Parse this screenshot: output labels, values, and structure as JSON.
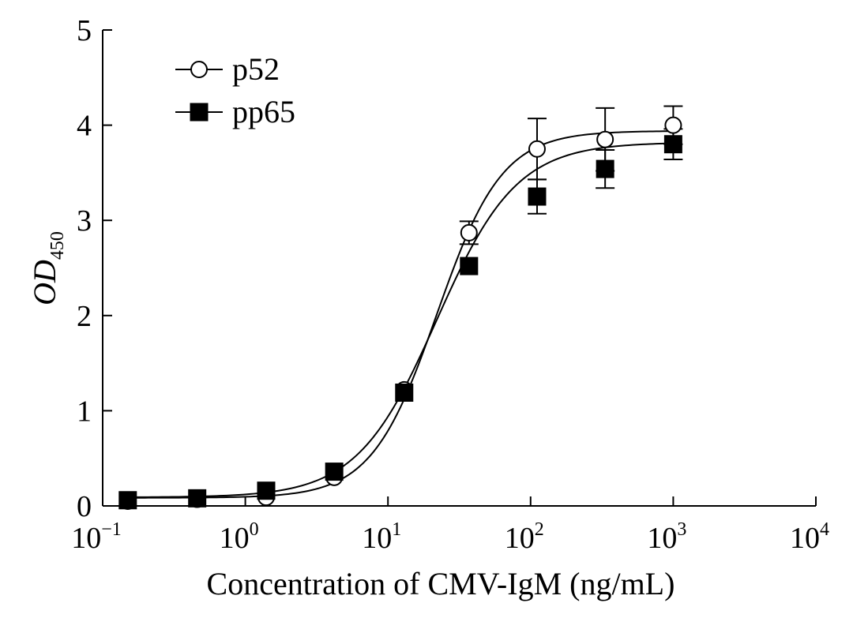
{
  "chart_data": {
    "type": "line",
    "title": "",
    "xlabel": "Concentration of CMV-IgM (ng/mL)",
    "ylabel": {
      "main": "OD",
      "sub": "450"
    },
    "x_scale": "log",
    "xlim": [
      0.1,
      10000
    ],
    "ylim": [
      0,
      5
    ],
    "x_ticks": [
      {
        "value": 0.1,
        "base": "10",
        "exp": "−1"
      },
      {
        "value": 1,
        "base": "10",
        "exp": "0"
      },
      {
        "value": 10,
        "base": "10",
        "exp": "1"
      },
      {
        "value": 100,
        "base": "10",
        "exp": "2"
      },
      {
        "value": 1000,
        "base": "10",
        "exp": "3"
      },
      {
        "value": 10000,
        "base": "10",
        "exp": "4"
      }
    ],
    "y_ticks": [
      {
        "value": 0,
        "label": "0"
      },
      {
        "value": 1,
        "label": "1"
      },
      {
        "value": 2,
        "label": "2"
      },
      {
        "value": 3,
        "label": "3"
      },
      {
        "value": 4,
        "label": "4"
      },
      {
        "value": 5,
        "label": "5"
      }
    ],
    "grid": false,
    "legend_position": "top-left",
    "series": [
      {
        "name": "p52",
        "marker": "open-circle",
        "x": [
          0.15,
          0.46,
          1.4,
          4.2,
          13,
          37,
          111,
          333,
          1000
        ],
        "y": [
          0.05,
          0.07,
          0.09,
          0.3,
          1.22,
          2.87,
          3.75,
          3.85,
          4.0
        ],
        "error": [
          0,
          0,
          0,
          0,
          0,
          0.12,
          0.32,
          0.33,
          0.2
        ],
        "curve": {
          "bottom": 0.085,
          "top": 3.94,
          "ec50": 22,
          "hill": 1.9
        }
      },
      {
        "name": "pp65",
        "marker": "filled-square",
        "x": [
          0.15,
          0.46,
          1.4,
          4.2,
          13,
          37,
          111,
          333,
          1000
        ],
        "y": [
          0.06,
          0.08,
          0.16,
          0.36,
          1.19,
          2.52,
          3.25,
          3.54,
          3.8
        ],
        "error": [
          0,
          0,
          0,
          0,
          0,
          0,
          0.18,
          0.2,
          0.16
        ],
        "curve": {
          "bottom": 0.09,
          "top": 3.82,
          "ec50": 22,
          "hill": 1.55
        }
      }
    ]
  },
  "colors": {
    "ink": "#000000",
    "background": "#ffffff"
  }
}
